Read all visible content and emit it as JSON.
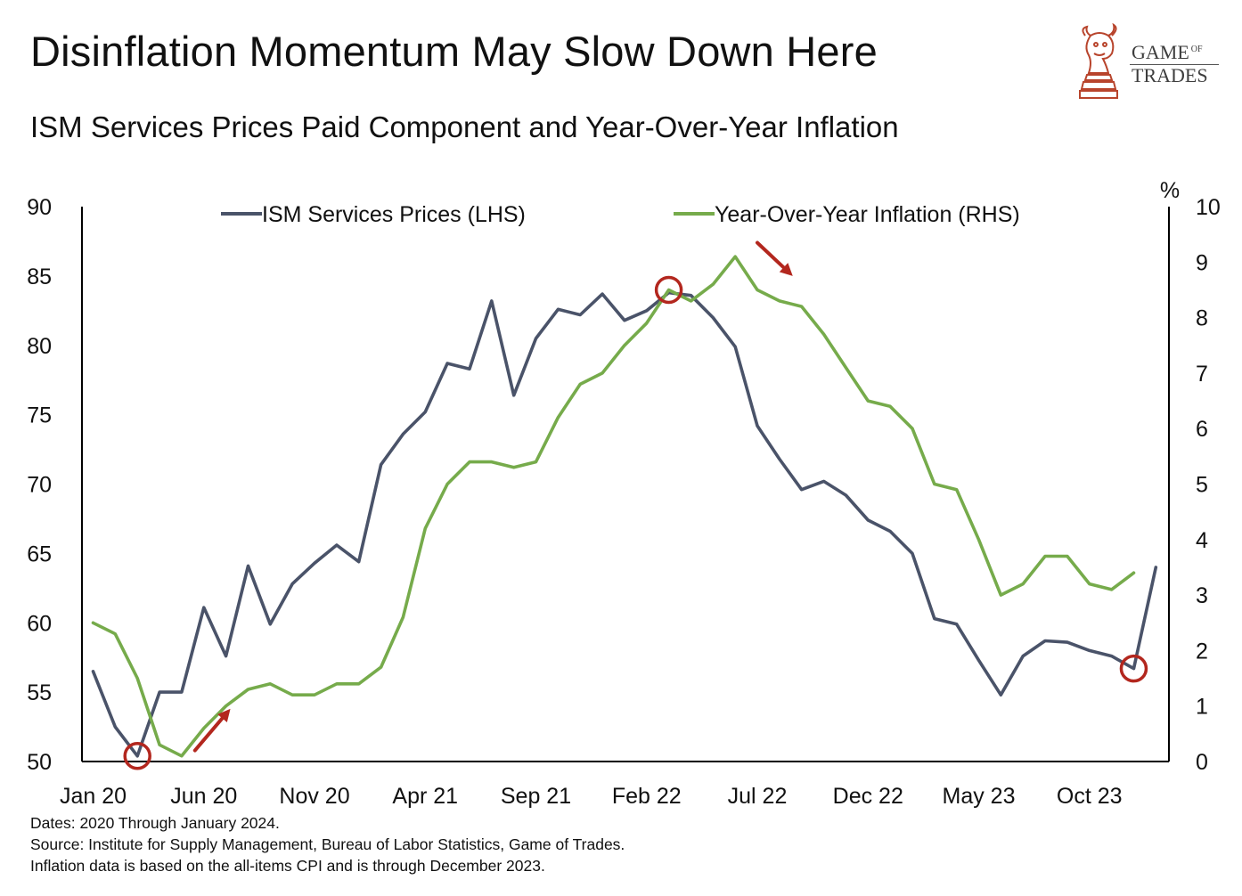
{
  "title": "Disinflation Momentum May Slow Down Here",
  "subtitle": "ISM Services Prices Paid Component and Year-Over-Year Inflation",
  "logo": {
    "line1": "GAME",
    "line1_small": "OF",
    "line2": "TRADES",
    "icon": "bull-chess-knight-icon"
  },
  "colors": {
    "ism": "#4a5369",
    "cpi": "#76ab4b",
    "annotation": "#b3271e"
  },
  "footnotes": [
    "Dates: 2020 Through January 2024.",
    "Source: Institute for Supply Management, Bureau of Labor Statistics, Game of Trades.",
    "Inflation data is based on the all-items CPI and is through December 2023."
  ],
  "chart_data": {
    "type": "line",
    "x_tick_labels": [
      "Jan 20",
      "Jun 20",
      "Nov 20",
      "Apr 21",
      "Sep 21",
      "Feb 22",
      "Jul 22",
      "Dec 22",
      "May 23",
      "Oct 23"
    ],
    "y_left": {
      "range": [
        50,
        90
      ],
      "ticks": [
        50,
        55,
        60,
        65,
        70,
        75,
        80,
        85,
        90
      ]
    },
    "y_right": {
      "label": "%",
      "range": [
        0,
        10
      ],
      "ticks": [
        0,
        1,
        2,
        3,
        4,
        5,
        6,
        7,
        8,
        9,
        10
      ]
    },
    "legend_position": "top",
    "series": [
      {
        "name": "ISM Services Prices (LHS)",
        "axis": "left",
        "start": "Jan 2020",
        "values": [
          56.5,
          52.5,
          50.4,
          55.0,
          55.0,
          61.1,
          57.6,
          64.1,
          59.9,
          62.8,
          64.3,
          65.6,
          64.4,
          71.4,
          73.6,
          75.2,
          78.7,
          78.3,
          83.2,
          76.4,
          80.5,
          82.6,
          82.2,
          83.7,
          81.8,
          82.5,
          83.8,
          83.6,
          82.0,
          79.9,
          74.2,
          71.8,
          69.6,
          70.2,
          69.2,
          67.4,
          66.6,
          65.0,
          60.3,
          59.9,
          57.3,
          54.8,
          57.6,
          58.7,
          58.6,
          58.0,
          57.6,
          56.7,
          64.0
        ]
      },
      {
        "name": "Year-Over-Year Inflation (RHS)",
        "axis": "right",
        "start": "Jan 2020",
        "values": [
          2.5,
          2.3,
          1.5,
          0.3,
          0.1,
          0.6,
          1.0,
          1.3,
          1.4,
          1.2,
          1.2,
          1.4,
          1.4,
          1.7,
          2.6,
          4.2,
          5.0,
          5.4,
          5.4,
          5.3,
          5.4,
          6.2,
          6.8,
          7.0,
          7.5,
          7.9,
          8.5,
          8.3,
          8.6,
          9.1,
          8.5,
          8.3,
          8.2,
          7.7,
          7.1,
          6.5,
          6.4,
          6.0,
          5.0,
          4.9,
          4.0,
          3.0,
          3.2,
          3.7,
          3.7,
          3.2,
          3.1,
          3.4
        ]
      }
    ],
    "annotations": {
      "circles": [
        {
          "series": 0,
          "index": 2
        },
        {
          "series": 1,
          "index": 26
        },
        {
          "series": 0,
          "index": 47
        }
      ],
      "arrows": [
        {
          "from_index": 4.6,
          "from_value_right": 0.2,
          "to_index": 6.2,
          "to_value_right": 0.95,
          "direction": "up"
        },
        {
          "from_index": 30.0,
          "from_value_right": 9.35,
          "to_index": 31.6,
          "to_value_right": 8.75,
          "direction": "down"
        }
      ]
    }
  }
}
